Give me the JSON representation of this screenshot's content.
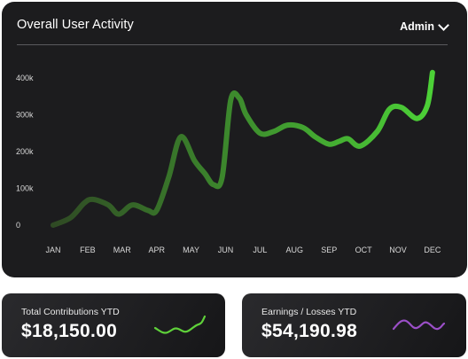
{
  "main_card": {
    "title": "Overall User Activity",
    "role_selector": "Admin"
  },
  "chart_data": {
    "type": "line",
    "categories": [
      "JAN",
      "FEB",
      "MAR",
      "APR",
      "MAY",
      "JUN",
      "JUL",
      "AUG",
      "SEP",
      "OCT",
      "NOV",
      "DEC"
    ],
    "y_ticks": [
      "400k",
      "300k",
      "200k",
      "100k",
      "0"
    ],
    "ylim": [
      0,
      400000
    ],
    "x": [
      0,
      0.5,
      0.9,
      1.15,
      1.6,
      1.9,
      2.3,
      2.75,
      3.0,
      3.35,
      3.7,
      4.1,
      4.4,
      4.65,
      4.9,
      5.15,
      5.4,
      5.6,
      6.0,
      6.4,
      6.8,
      7.25,
      7.6,
      8.0,
      8.3,
      8.55,
      8.9,
      9.4,
      9.75,
      10.1,
      10.55,
      10.85,
      11.0
    ],
    "values": [
      0,
      20000,
      60000,
      70000,
      55000,
      30000,
      55000,
      40000,
      40000,
      130000,
      240000,
      175000,
      140000,
      110000,
      130000,
      340000,
      345000,
      300000,
      250000,
      255000,
      272000,
      265000,
      240000,
      220000,
      228000,
      235000,
      215000,
      255000,
      315000,
      320000,
      290000,
      325000,
      415000
    ],
    "grid": false,
    "legend": "none",
    "gradient_colors": [
      "#2f4a24",
      "#4cd137"
    ]
  },
  "stats": [
    {
      "label": "Total Contributions YTD",
      "value": "$18,150.00",
      "spark_color": "#5fd13a"
    },
    {
      "label": "Earnings / Losses YTD",
      "value": "$54,190.98",
      "spark_color": "#9b4fc8"
    }
  ]
}
